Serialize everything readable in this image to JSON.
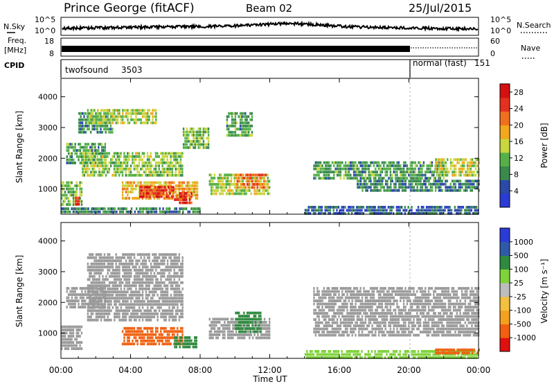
{
  "header": {
    "station": "Prince George (fitACF)",
    "beam": "Beam 02",
    "date": "25/Jul/2015"
  },
  "noise_panel": {
    "left_label": "N.Sky",
    "right_label": "N.Search",
    "left_ticks": [
      "10^5",
      "10^0"
    ],
    "right_ticks": [
      "10^5",
      "10^0"
    ]
  },
  "freq_panel": {
    "left_label_1": "Freq.",
    "left_label_2": "[MHz]",
    "right_label": "Nave",
    "left_ticks": [
      "18",
      "8"
    ],
    "right_ticks": [
      "60",
      "0"
    ]
  },
  "cpid_panel": {
    "label": "CPID",
    "modes": [
      {
        "name": "twofsound",
        "id": "3503"
      },
      {
        "name": "normal (fast)",
        "id": "151"
      }
    ]
  },
  "colors": {
    "power": [
      "#2b3bd6",
      "#2b49a8",
      "#3a8a4e",
      "#55b048",
      "#c8d640",
      "#f2a81c",
      "#f07020",
      "#e53020",
      "#d41010"
    ],
    "velocity": [
      "#e01010",
      "#f06010",
      "#f4a020",
      "#f4c040",
      "#bdbdbd",
      "#7fd23a",
      "#2f8a3f",
      "#2f5aa8",
      "#2b3bd6"
    ],
    "ground_scatter": "#9a9a9a"
  },
  "chart_data": [
    {
      "type": "heatmap",
      "title": "Power",
      "ylabel": "Slant Range [km]",
      "yticks": [
        1000,
        2000,
        3000,
        4000
      ],
      "ylim": [
        180,
        4600
      ],
      "xlim": [
        0,
        24
      ],
      "colorbar_label": "Power [dB]",
      "colorbar_ticks": [
        4,
        8,
        12,
        16,
        20,
        24,
        28
      ],
      "colorbar_range": [
        0,
        30
      ],
      "regions": [
        {
          "t": [
            0.0,
            1.2
          ],
          "r": [
            500,
            1250
          ],
          "value": 12
        },
        {
          "t": [
            0.8,
            1.1
          ],
          "r": [
            500,
            750
          ],
          "value": 26
        },
        {
          "t": [
            0.3,
            2.5
          ],
          "r": [
            1800,
            2500
          ],
          "value": 10
        },
        {
          "t": [
            1.0,
            3.0
          ],
          "r": [
            2800,
            3500
          ],
          "value": 9
        },
        {
          "t": [
            1.5,
            5.5
          ],
          "r": [
            3100,
            3600
          ],
          "value": 14
        },
        {
          "t": [
            1.2,
            7.0
          ],
          "r": [
            1400,
            2200
          ],
          "value": 13
        },
        {
          "t": [
            3.5,
            7.8
          ],
          "r": [
            700,
            1250
          ],
          "value": 18
        },
        {
          "t": [
            4.5,
            6.5
          ],
          "r": [
            750,
            1100
          ],
          "value": 25
        },
        {
          "t": [
            6.5,
            7.5
          ],
          "r": [
            500,
            900
          ],
          "value": 26
        },
        {
          "t": [
            7.0,
            8.5
          ],
          "r": [
            2300,
            3000
          ],
          "value": 12
        },
        {
          "t": [
            8.5,
            12.0
          ],
          "r": [
            800,
            1500
          ],
          "value": 14
        },
        {
          "t": [
            10.0,
            11.8
          ],
          "r": [
            1000,
            1500
          ],
          "value": 22
        },
        {
          "t": [
            9.5,
            11.0
          ],
          "r": [
            2700,
            3500
          ],
          "value": 10
        },
        {
          "t": [
            14.5,
            22.0
          ],
          "r": [
            1300,
            1900
          ],
          "value": 10
        },
        {
          "t": [
            17.0,
            24.0
          ],
          "r": [
            900,
            1300
          ],
          "value": 8
        },
        {
          "t": [
            21.5,
            24.0
          ],
          "r": [
            1400,
            2000
          ],
          "value": 15
        },
        {
          "t": [
            14.0,
            24.0
          ],
          "r": [
            200,
            450
          ],
          "value": 6
        },
        {
          "t": [
            0.0,
            8.0
          ],
          "r": [
            200,
            400
          ],
          "value": 8
        }
      ]
    },
    {
      "type": "heatmap",
      "title": "Velocity",
      "ylabel": "Slant Range [km]",
      "xlabel": "Time UT",
      "yticks": [
        1000,
        2000,
        3000,
        4000
      ],
      "ylim": [
        180,
        4600
      ],
      "xlim": [
        0,
        24
      ],
      "xticks": [
        "00:00",
        "04:00",
        "08:00",
        "12:00",
        "16:00",
        "20:00",
        "00:00"
      ],
      "colorbar_label": "Velocity [m s⁻¹]",
      "colorbar_ticks": [
        "1000",
        "500",
        "100",
        "25",
        "-25",
        "-100",
        "-500",
        "-1000"
      ],
      "regions": [
        {
          "t": [
            0.0,
            1.2
          ],
          "r": [
            500,
            1250
          ],
          "value": "gs"
        },
        {
          "t": [
            0.3,
            2.5
          ],
          "r": [
            1800,
            2500
          ],
          "value": "gs"
        },
        {
          "t": [
            1.5,
            7.0
          ],
          "r": [
            1400,
            3600
          ],
          "value": "gs"
        },
        {
          "t": [
            3.5,
            7.0
          ],
          "r": [
            650,
            1200
          ],
          "value": -200
        },
        {
          "t": [
            6.5,
            7.8
          ],
          "r": [
            500,
            900
          ],
          "value": 150
        },
        {
          "t": [
            8.5,
            12.0
          ],
          "r": [
            800,
            1500
          ],
          "value": "gs"
        },
        {
          "t": [
            10.0,
            11.5
          ],
          "r": [
            1000,
            1700
          ],
          "value": 300
        },
        {
          "t": [
            14.5,
            24.0
          ],
          "r": [
            900,
            2500
          ],
          "value": "gs"
        },
        {
          "t": [
            14.0,
            24.0
          ],
          "r": [
            200,
            450
          ],
          "value": 60
        },
        {
          "t": [
            21.5,
            24.0
          ],
          "r": [
            300,
            500
          ],
          "value": -150
        }
      ]
    }
  ]
}
